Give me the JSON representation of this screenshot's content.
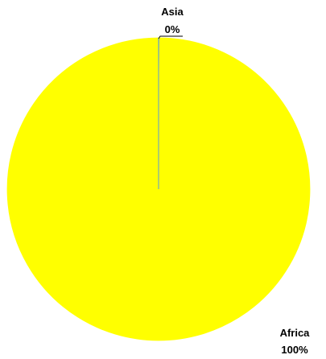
{
  "chart_data": {
    "type": "pie",
    "title": "",
    "slices": [
      {
        "name": "Africa",
        "value": 100,
        "label": "100%",
        "color": "#ffff00"
      },
      {
        "name": "Asia",
        "value": 0.1,
        "label": "0%",
        "color": "#5b9bd5"
      }
    ]
  }
}
